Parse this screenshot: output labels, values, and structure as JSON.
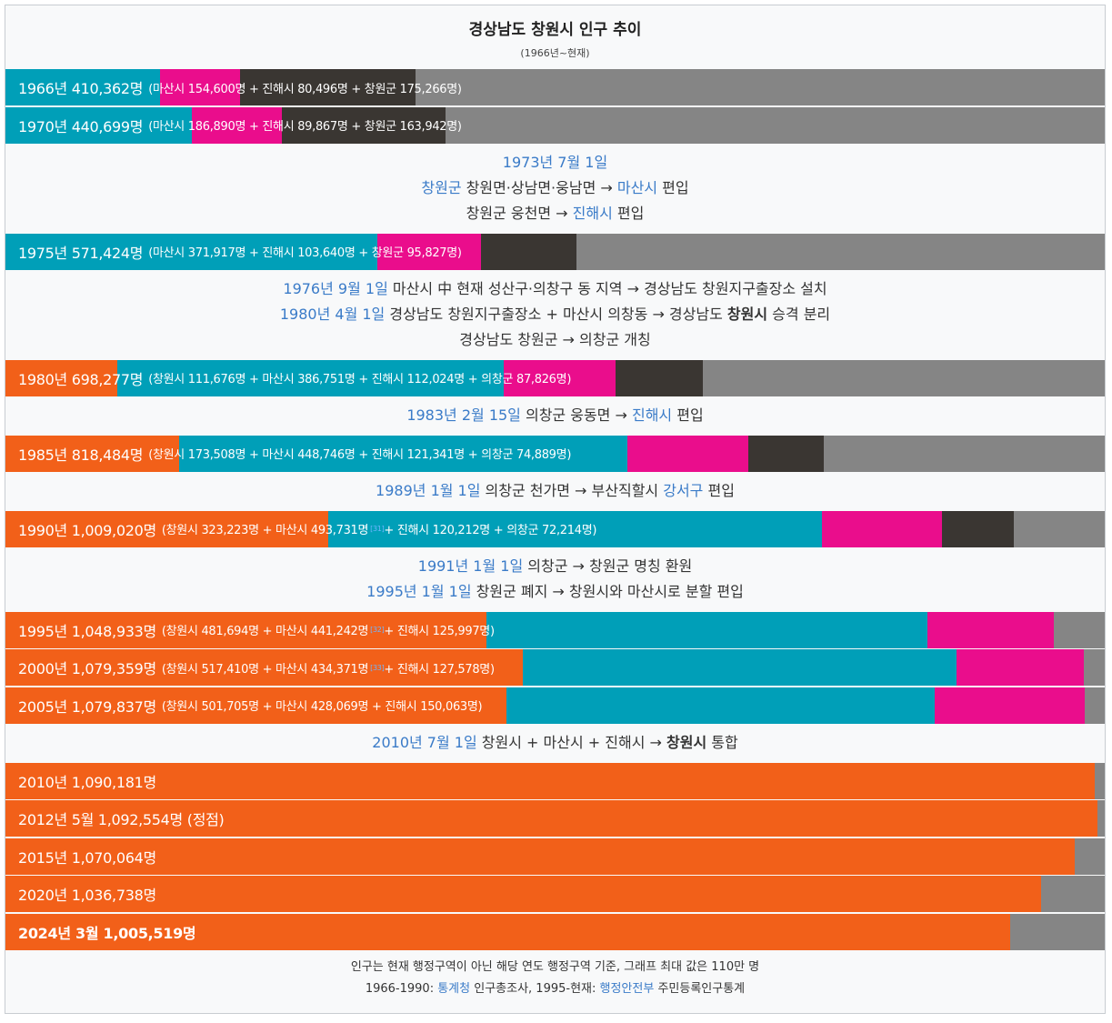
{
  "title": "경상남도 창원시 인구 추이",
  "subtitle": "(1966년~현재)",
  "colors": {
    "changwon_city": "#f26019",
    "masan": "#009fb8",
    "jinhae": "#ea0d8c",
    "changwon_gun": "#3a3632",
    "remainder": "#858585",
    "link": "#3a7bc8"
  },
  "chart_data": {
    "type": "bar",
    "orientation": "horizontal-stacked",
    "max_value": 1100000,
    "categories": [
      "1966년",
      "1970년",
      "1975년",
      "1980년",
      "1985년",
      "1990년",
      "1995년",
      "2000년",
      "2005년",
      "2010년",
      "2012년 5월",
      "2015년",
      "2020년",
      "2024년 3월"
    ],
    "series": [
      {
        "name": "창원시",
        "color": "#f26019",
        "values": [
          0,
          0,
          0,
          111676,
          173508,
          323223,
          481694,
          517410,
          501705,
          1090181,
          1092554,
          1070064,
          1036738,
          1005519
        ]
      },
      {
        "name": "마산시",
        "color": "#009fb8",
        "values": [
          154600,
          186890,
          371917,
          386751,
          448746,
          493731,
          441242,
          434371,
          428069,
          0,
          0,
          0,
          0,
          0
        ]
      },
      {
        "name": "진해시",
        "color": "#ea0d8c",
        "values": [
          80496,
          89867,
          103640,
          112024,
          121341,
          120212,
          125997,
          127578,
          150063,
          0,
          0,
          0,
          0,
          0
        ]
      },
      {
        "name": "창원군/의창군",
        "color": "#3a3632",
        "values": [
          175266,
          163942,
          95827,
          87826,
          74889,
          72214,
          0,
          0,
          0,
          0,
          0,
          0,
          0,
          0
        ]
      }
    ],
    "totals": [
      410362,
      440699,
      571424,
      698277,
      818484,
      1009020,
      1048933,
      1079359,
      1079837,
      1090181,
      1092554,
      1070064,
      1036738,
      1005519
    ]
  },
  "rows": [
    {
      "kind": "bar",
      "main": "1966년 410,362명",
      "detail": "(마산시 154,600명 + 진해시 80,496명 + 창원군 175,266명)"
    },
    {
      "kind": "bar",
      "main": "1970년 440,699명",
      "detail": "(마산시 186,890명 + 진해시 89,867명 + 창원군 163,942명)"
    },
    {
      "kind": "note",
      "lines": [
        [
          {
            "t": "1973년 7월 1일",
            "hl": true
          }
        ],
        [
          {
            "t": "창원군",
            "hl": true
          },
          {
            "t": " 창원면·상남면·웅남면 → "
          },
          {
            "t": "마산시",
            "hl": true
          },
          {
            "t": " 편입"
          }
        ],
        [
          {
            "t": "창원군 웅천면 → "
          },
          {
            "t": "진해시",
            "hl": true
          },
          {
            "t": " 편입"
          }
        ]
      ]
    },
    {
      "kind": "bar",
      "main": "1975년 571,424명",
      "detail": "(마산시 371,917명 + 진해시 103,640명 + 창원군 95,827명)"
    },
    {
      "kind": "note",
      "lines": [
        [
          {
            "t": "1976년 9월 1일",
            "hl": true
          },
          {
            "t": " 마산시 中 현재 성산구·의창구 동 지역 → 경상남도 창원지구출장소 설치"
          }
        ],
        [
          {
            "t": "1980년 4월 1일",
            "hl": true
          },
          {
            "t": " 경상남도 창원지구출장소 + 마산시 의창동 → 경상남도 "
          },
          {
            "t": "창원시",
            "b": true
          },
          {
            "t": " 승격 분리"
          }
        ],
        [
          {
            "t": "경상남도 창원군 → 의창군 개칭"
          }
        ]
      ]
    },
    {
      "kind": "bar",
      "main": "1980년 698,277명",
      "detail": "(창원시 111,676명 + 마산시 386,751명 + 진해시 112,024명 + 의창군 87,826명)"
    },
    {
      "kind": "note",
      "lines": [
        [
          {
            "t": "1983년 2월 15일",
            "hl": true
          },
          {
            "t": " 의창군 웅동면 → "
          },
          {
            "t": "진해시",
            "hl": true
          },
          {
            "t": " 편입"
          }
        ]
      ]
    },
    {
      "kind": "bar",
      "main": "1985년 818,484명",
      "detail": "(창원시 173,508명 + 마산시 448,746명 + 진해시 121,341명 + 의창군 74,889명)"
    },
    {
      "kind": "note",
      "lines": [
        [
          {
            "t": "1989년 1월 1일",
            "hl": true
          },
          {
            "t": " 의창군 천가면 → 부산직할시 "
          },
          {
            "t": "강서구",
            "hl": true
          },
          {
            "t": " 편입"
          }
        ]
      ]
    },
    {
      "kind": "bar",
      "main": "1990년 1,009,020명",
      "detail": "(창원시 323,223명 + 마산시 493,731명",
      "ref": "[31]",
      "detail2": " + 진해시 120,212명 + 의창군 72,214명)"
    },
    {
      "kind": "note",
      "lines": [
        [
          {
            "t": "1991년 1월 1일",
            "hl": true
          },
          {
            "t": " 의창군 → 창원군 명칭 환원"
          }
        ],
        [
          {
            "t": "1995년 1월 1일",
            "hl": true
          },
          {
            "t": " 창원군 폐지 → 창원시와 마산시로 분할 편입"
          }
        ]
      ]
    },
    {
      "kind": "bar",
      "main": "1995년 1,048,933명",
      "detail": "(창원시 481,694명 + 마산시 441,242명",
      "ref": "[32]",
      "detail2": " + 진해시 125,997명)"
    },
    {
      "kind": "bar",
      "main": "2000년 1,079,359명",
      "detail": "(창원시 517,410명 + 마산시 434,371명",
      "ref": "[33]",
      "detail2": " + 진해시 127,578명)"
    },
    {
      "kind": "bar",
      "main": "2005년 1,079,837명",
      "detail": "(창원시 501,705명 + 마산시 428,069명 + 진해시 150,063명)"
    },
    {
      "kind": "note",
      "lines": [
        [
          {
            "t": "2010년 7월 1일",
            "hl": true
          },
          {
            "t": " 창원시 + 마산시 + 진해시 → "
          },
          {
            "t": "창원시",
            "b": true
          },
          {
            "t": " 통합"
          }
        ]
      ]
    },
    {
      "kind": "bar",
      "main": "2010년 1,090,181명",
      "detail": ""
    },
    {
      "kind": "bar",
      "main": "2012년 5월 1,092,554명 (정점)",
      "detail": ""
    },
    {
      "kind": "bar",
      "main": "2015년 1,070,064명",
      "detail": ""
    },
    {
      "kind": "bar",
      "main": "2020년 1,036,738명",
      "detail": ""
    },
    {
      "kind": "bar",
      "main": "2024년 3월 1,005,519명",
      "detail": "",
      "bold": true
    }
  ],
  "footer": {
    "line1": "인구는 현재 행정구역이 아닌 해당 연도 행정구역 기준, 그래프 최대 값은 110만 명",
    "line2_prefix": "1966-1990: ",
    "line2_link1": "통계청",
    "line2_mid": " 인구총조사, 1995-현재: ",
    "line2_link2": "행정안전부",
    "line2_suffix": " 주민등록인구통계"
  }
}
